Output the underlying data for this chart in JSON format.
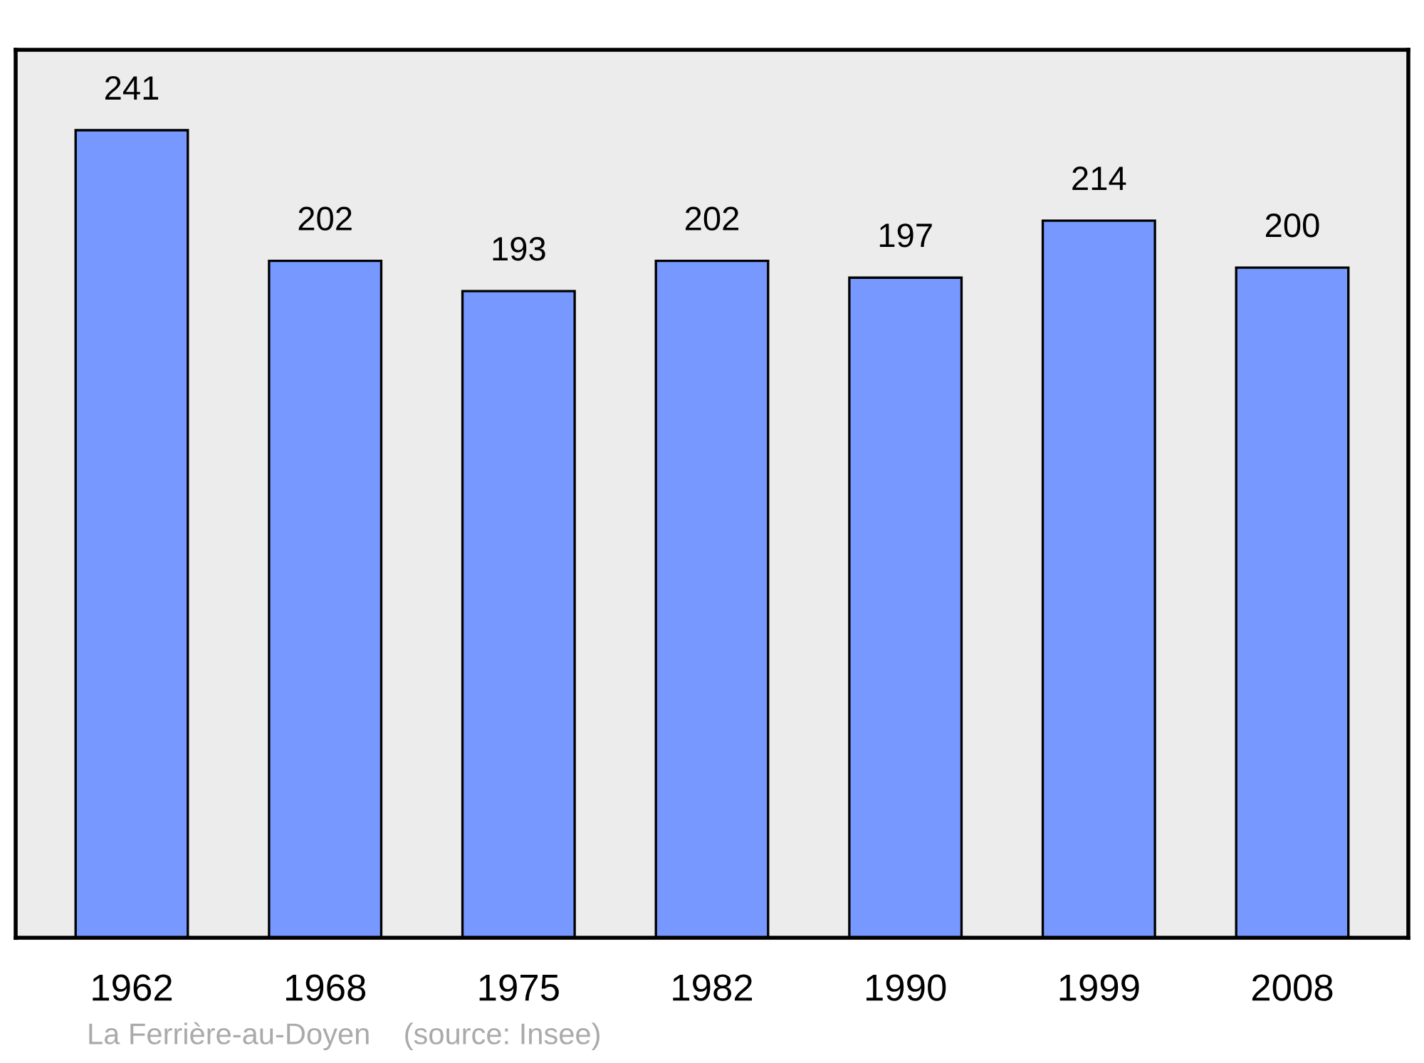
{
  "chart_data": {
    "type": "bar",
    "categories": [
      "1962",
      "1968",
      "1975",
      "1982",
      "1990",
      "1999",
      "2008"
    ],
    "values": [
      241,
      202,
      193,
      202,
      197,
      214,
      200
    ],
    "color": "#7799ff",
    "data_labels": true,
    "ylim": [
      0,
      265
    ],
    "tick_labels": "x",
    "grid": false,
    "legend": false,
    "annotations": [
      "La Ferrière-au-Doyen    (source: Insee)"
    ]
  }
}
